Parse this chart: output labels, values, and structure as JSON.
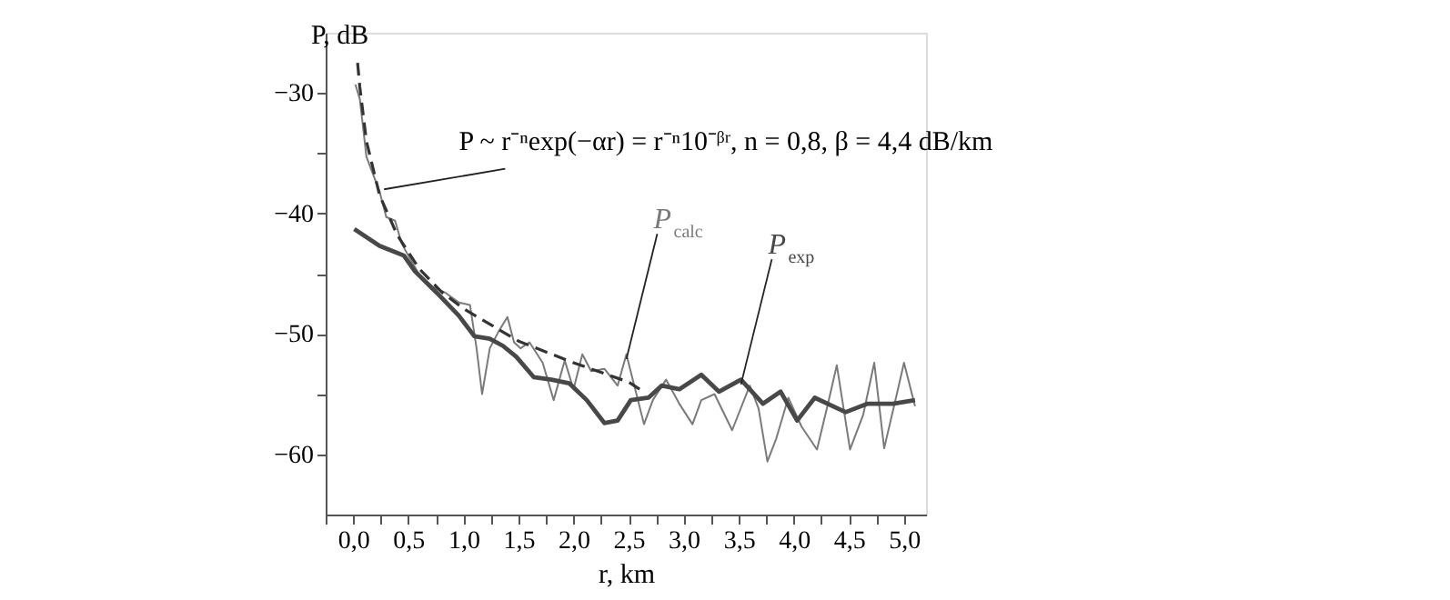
{
  "chart_data": {
    "type": "line",
    "xlabel": "r, km",
    "ylabel": "P, dB",
    "xlim": [
      -0.25,
      5.2
    ],
    "ylim": [
      -65,
      -25
    ],
    "xticks": [
      {
        "value": -0.25,
        "label": null
      },
      {
        "value": 0,
        "label": "0,0"
      },
      {
        "value": 0.25,
        "label": null
      },
      {
        "value": 0.5,
        "label": "0,5"
      },
      {
        "value": 0.75,
        "label": null
      },
      {
        "value": 1,
        "label": "1,0"
      },
      {
        "value": 1.25,
        "label": null
      },
      {
        "value": 1.5,
        "label": "1,5"
      },
      {
        "value": 1.75,
        "label": null
      },
      {
        "value": 2,
        "label": "2,0"
      },
      {
        "value": 2.25,
        "label": null
      },
      {
        "value": 2.5,
        "label": "2,5"
      },
      {
        "value": 2.75,
        "label": null
      },
      {
        "value": 3,
        "label": "3,0"
      },
      {
        "value": 3.25,
        "label": null
      },
      {
        "value": 3.5,
        "label": "3,5"
      },
      {
        "value": 3.75,
        "label": null
      },
      {
        "value": 4,
        "label": "4,0"
      },
      {
        "value": 4.25,
        "label": null
      },
      {
        "value": 4.5,
        "label": "4,5"
      },
      {
        "value": 4.75,
        "label": null
      },
      {
        "value": 5,
        "label": "5,0"
      }
    ],
    "yticks": [
      {
        "value": -60,
        "label": "−60"
      },
      {
        "value": -55,
        "label": null
      },
      {
        "value": -50,
        "label": "−50"
      },
      {
        "value": -45,
        "label": null
      },
      {
        "value": -40,
        "label": "−40"
      },
      {
        "value": -35,
        "label": null
      },
      {
        "value": -30,
        "label": "−30"
      }
    ],
    "grid": false,
    "legend": false,
    "annotations": [
      {
        "text": "P ~ r⁻ⁿexp(−αr) = r⁻ⁿ10⁻ᵝʳ, n = 0,8, β = 4,4 dB/km",
        "x": 0.28,
        "y": -38
      }
    ],
    "series": [
      {
        "name": "P$_{calc}$",
        "color": "#7a7a7a",
        "line_style": "solid",
        "x": [
          0.02,
          0.06,
          0.12,
          0.24,
          0.3,
          0.38,
          0.44,
          0.5,
          0.6,
          0.72,
          0.84,
          0.96,
          1.06,
          1.12,
          1.17,
          1.24,
          1.32,
          1.4,
          1.46,
          1.52,
          1.6,
          1.72,
          1.82,
          1.92,
          2.0,
          2.08,
          2.16,
          2.28,
          2.4,
          2.48,
          2.56,
          2.64,
          2.72,
          2.84,
          2.96,
          3.08,
          3.16,
          3.28,
          3.44,
          3.6,
          3.68,
          3.76,
          3.84,
          3.95,
          4.07,
          4.21,
          4.31,
          4.39,
          4.51,
          4.63,
          4.73,
          4.82,
          4.94,
          5.0,
          5.1
        ],
        "values": [
          -29.3,
          -30.5,
          -35.3,
          -38.2,
          -40.3,
          -40.6,
          -42.5,
          -43.5,
          -45.1,
          -46.1,
          -46.6,
          -47.4,
          -47.6,
          -51.2,
          -55,
          -51.2,
          -49.8,
          -48.6,
          -50.7,
          -51.2,
          -50.7,
          -52.4,
          -55.5,
          -52.2,
          -54.6,
          -51.7,
          -53.1,
          -52.9,
          -54.3,
          -51.7,
          -54.6,
          -57.5,
          -55.5,
          -53.8,
          -55.8,
          -57.5,
          -55.5,
          -55,
          -58,
          -54.3,
          -56.2,
          -60.6,
          -58.7,
          -55.3,
          -57.7,
          -59.6,
          -55.8,
          -52.6,
          -59.6,
          -56.7,
          -52.4,
          -59.5,
          -54.8,
          -52.4,
          -56
        ]
      },
      {
        "name": "P$_{exp}$",
        "color": "#484848",
        "line_style": "solid",
        "x": [
          0.01,
          0.24,
          0.38,
          0.46,
          0.56,
          0.76,
          0.96,
          1.1,
          1.24,
          1.36,
          1.48,
          1.64,
          1.8,
          1.96,
          2.12,
          2.28,
          2.4,
          2.52,
          2.68,
          2.8,
          2.96,
          3.16,
          3.32,
          3.52,
          3.72,
          3.88,
          4.03,
          4.19,
          4.47,
          4.67,
          4.9,
          5.1
        ],
        "values": [
          -41.3,
          -42.7,
          -43.2,
          -43.5,
          -44.8,
          -46.6,
          -48.5,
          -50.2,
          -50.4,
          -51,
          -51.9,
          -53.6,
          -53.8,
          -54.1,
          -55.5,
          -57.4,
          -57.2,
          -55.5,
          -55.3,
          -54.3,
          -54.6,
          -53.4,
          -54.8,
          -53.8,
          -55.8,
          -54.8,
          -57.2,
          -55.3,
          -56.5,
          -55.8,
          -55.8,
          -55.5
        ]
      },
      {
        "color": "#333333",
        "line_style": "dashed",
        "x": [
          0.04,
          0.06,
          0.12,
          0.24,
          0.4,
          0.6,
          0.8,
          1.0,
          1.5,
          2.0,
          2.5,
          2.6
        ],
        "values": [
          -27.5,
          -29.5,
          -34,
          -38.5,
          -41.8,
          -44.6,
          -46.5,
          -47.9,
          -50.6,
          -52.4,
          -54,
          -54.6
        ]
      }
    ]
  }
}
